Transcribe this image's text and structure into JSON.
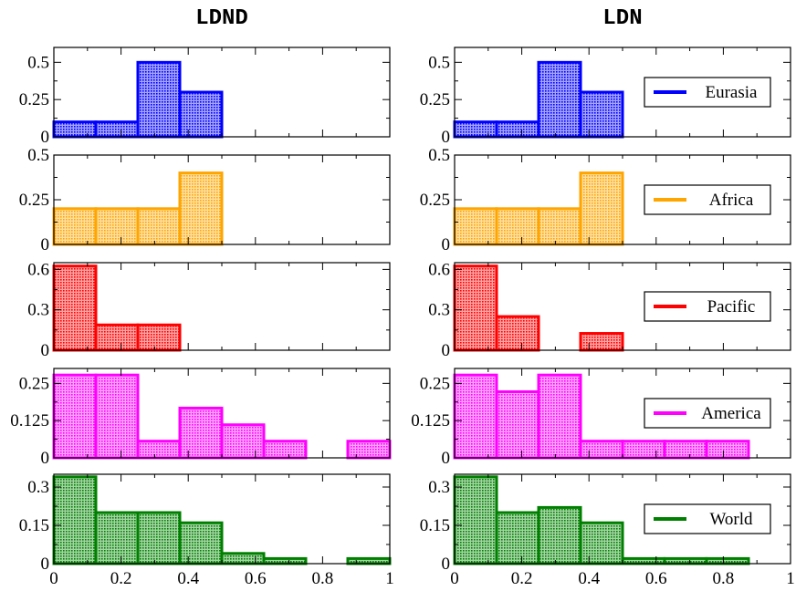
{
  "chart_data": {
    "type": "bar",
    "layout": "grid",
    "columns": [
      "LDND",
      "LDN"
    ],
    "xlim": [
      0,
      1
    ],
    "bin_width": 0.125,
    "x_ticks": [
      0,
      0.2,
      0.4,
      0.6,
      0.8,
      1
    ],
    "x_tick_labels": [
      "0",
      "0.2",
      "0.4",
      "0.6",
      "0.8",
      "1"
    ],
    "rows": [
      {
        "region": "Eurasia",
        "color": "#0000ff",
        "ylim": [
          0,
          0.6
        ],
        "y_ticks": [
          0,
          0.25,
          0.5
        ],
        "y_tick_labels": [
          "0",
          "0.25",
          "0.5"
        ],
        "LDND": [
          0.1,
          0.1,
          0.5,
          0.3
        ],
        "LDN": [
          0.1,
          0.1,
          0.5,
          0.3
        ]
      },
      {
        "region": "Africa",
        "color": "#ffa500",
        "ylim": [
          0,
          0.5
        ],
        "y_ticks": [
          0,
          0.25,
          0.5
        ],
        "y_tick_labels": [
          "0",
          "0.25",
          "0.5"
        ],
        "LDND": [
          0.2,
          0.2,
          0.2,
          0.4
        ],
        "LDN": [
          0.2,
          0.2,
          0.2,
          0.4
        ]
      },
      {
        "region": "Pacific",
        "color": "#ff0000",
        "ylim": [
          0,
          0.65
        ],
        "y_ticks": [
          0,
          0.3,
          0.6
        ],
        "y_tick_labels": [
          "0",
          "0.3",
          "0.6"
        ],
        "LDND": [
          0.625,
          0.188,
          0.188
        ],
        "LDN": [
          0.625,
          0.25,
          0,
          0.125
        ]
      },
      {
        "region": "America",
        "color": "#ff00ff",
        "ylim": [
          0,
          0.3
        ],
        "y_ticks": [
          0,
          0.125,
          0.25
        ],
        "y_tick_labels": [
          "0",
          "0.125",
          "0.25"
        ],
        "LDND": [
          0.278,
          0.278,
          0.056,
          0.167,
          0.111,
          0.056,
          0,
          0.056
        ],
        "LDN": [
          0.278,
          0.222,
          0.278,
          0.056,
          0.056,
          0.056,
          0.056
        ]
      },
      {
        "region": "World",
        "color": "#008000",
        "ylim": [
          0,
          0.35
        ],
        "y_ticks": [
          0,
          0.15,
          0.3
        ],
        "y_tick_labels": [
          "0",
          "0.15",
          "0.3"
        ],
        "LDND": [
          0.34,
          0.2,
          0.2,
          0.16,
          0.04,
          0.02,
          0,
          0.02
        ],
        "LDN": [
          0.34,
          0.2,
          0.22,
          0.16,
          0.02,
          0.02,
          0.02
        ]
      }
    ]
  }
}
